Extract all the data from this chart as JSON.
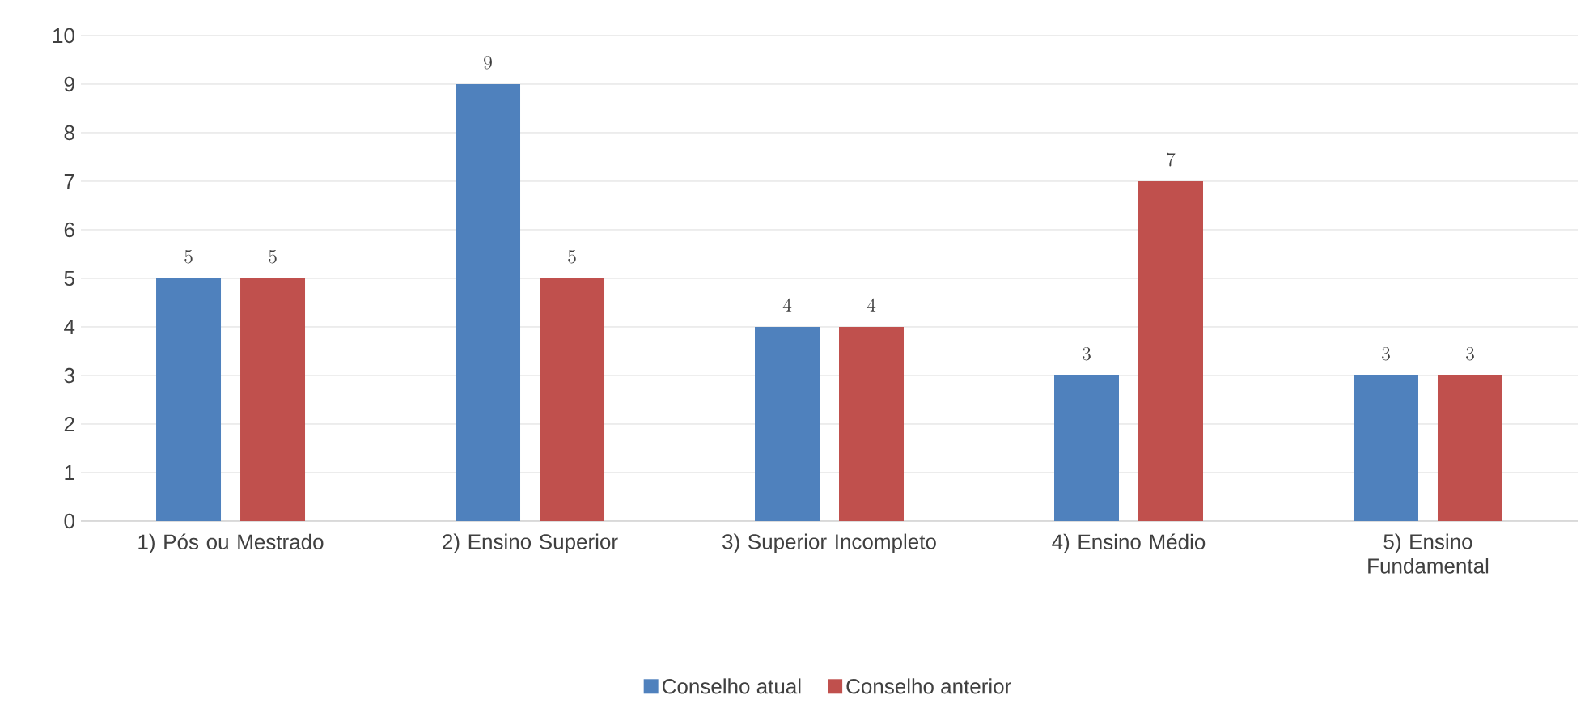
{
  "chart_data": {
    "type": "bar",
    "categories": [
      "1) Pós ou Mestrado",
      "2) Ensino Superior",
      "3) Superior Incompleto",
      "4) Ensino Médio",
      "5) Ensino Fundamental"
    ],
    "series": [
      {
        "name": "Conselho atual",
        "color": "#4f81bd",
        "values": [
          5,
          9,
          4,
          3,
          3
        ]
      },
      {
        "name": "Conselho anterior",
        "color": "#c0504d",
        "values": [
          5,
          5,
          4,
          7,
          3
        ]
      }
    ],
    "ylim": [
      0,
      10
    ],
    "yticks": [
      0,
      1,
      2,
      3,
      4,
      5,
      6,
      7,
      8,
      9,
      10
    ],
    "grid": "y",
    "legend": "bottom",
    "data_labels": true
  }
}
